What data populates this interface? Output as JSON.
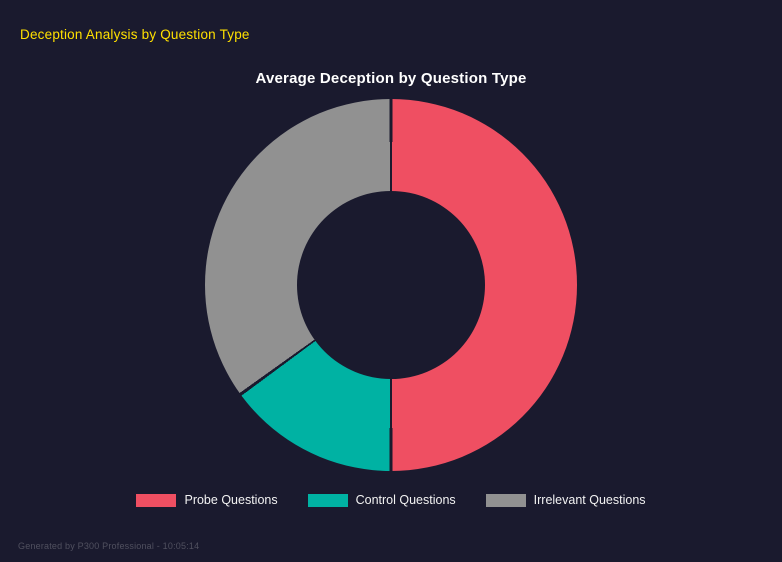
{
  "header": {
    "title": "Deception Analysis by Question Type",
    "title_color": "#ffe000"
  },
  "chart_data": {
    "type": "pie",
    "variant": "doughnut",
    "title": "Average Deception by Question Type",
    "labels": [
      "Probe Questions",
      "Control Questions",
      "Irrelevant Questions"
    ],
    "values": [
      50,
      15,
      35
    ],
    "units": "percent_of_circle",
    "colors": [
      "#ef4f62",
      "#00b2a3",
      "#919191"
    ],
    "start_angle_deg": 0,
    "direction": "clockwise",
    "cutout_percent": 50,
    "legend_position": "bottom",
    "background": "#1a1a2e",
    "segment_border_color": "#1a1a2e"
  },
  "footer": {
    "text": "Generated by P300 Professional - 10:05:14"
  }
}
